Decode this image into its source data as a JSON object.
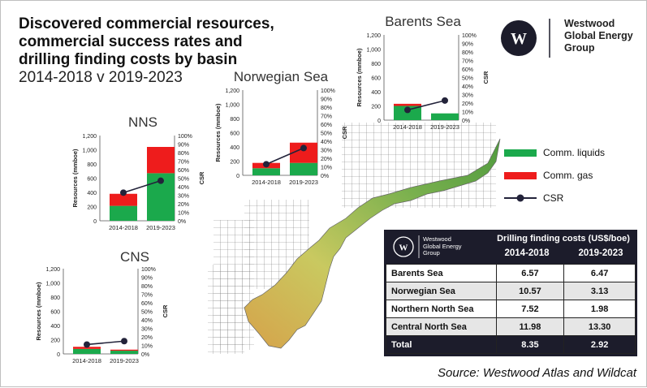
{
  "title": {
    "line1": "Discovered commercial resources,",
    "line2": "commercial success rates and",
    "line3": "drilling finding costs by basin",
    "subtitle": "2014-2018  v  2019-2023"
  },
  "logo": {
    "line1": "Westwood",
    "line2": "Global Energy",
    "line3": "Group"
  },
  "legend": {
    "liquids": "Comm. liquids",
    "gas": "Comm. gas",
    "csr": "CSR",
    "colors": {
      "liquids": "#1ba94c",
      "gas": "#ee1c1c",
      "csr": "#23233a"
    }
  },
  "chart_data": [
    {
      "type": "bar",
      "title": "NNS",
      "categories": [
        "2014-2018",
        "2019-2023"
      ],
      "series": [
        {
          "name": "Comm. liquids",
          "values": [
            210,
            670
          ]
        },
        {
          "name": "Comm. gas",
          "values": [
            170,
            370
          ]
        },
        {
          "name": "CSR",
          "values": [
            0.33,
            0.47
          ]
        }
      ],
      "ylabel": "Resources (mmboe)",
      "y2label": "CSR",
      "ylim": [
        0,
        1200
      ],
      "yticks": [
        "0",
        "200",
        "400",
        "600",
        "800",
        "1,000",
        "1,200"
      ],
      "y2ticks": [
        "0%",
        "10%",
        "20%",
        "30%",
        "40%",
        "50%",
        "60%",
        "70%",
        "80%",
        "90%",
        "100%"
      ]
    },
    {
      "type": "bar",
      "title": "Norwegian Sea",
      "categories": [
        "2014-2018",
        "2019-2023"
      ],
      "series": [
        {
          "name": "Comm. liquids",
          "values": [
            100,
            175
          ]
        },
        {
          "name": "Comm. gas",
          "values": [
            75,
            285
          ]
        },
        {
          "name": "CSR",
          "values": [
            0.13,
            0.32
          ]
        }
      ],
      "ylabel": "Resources (mmboe)",
      "y2label": "CSR",
      "ylim": [
        0,
        1200
      ],
      "yticks": [
        "0",
        "200",
        "400",
        "600",
        "800",
        "1,000",
        "1,200"
      ],
      "y2ticks": [
        "0%",
        "10%",
        "20%",
        "30%",
        "40%",
        "50%",
        "60%",
        "70%",
        "80%",
        "90%",
        "100%"
      ]
    },
    {
      "type": "bar",
      "title": "Barents Sea",
      "categories": [
        "2014-2018",
        "2019-2023"
      ],
      "series": [
        {
          "name": "Comm. liquids",
          "values": [
            200,
            95
          ]
        },
        {
          "name": "Comm. gas",
          "values": [
            30,
            0
          ]
        },
        {
          "name": "CSR",
          "values": [
            0.12,
            0.23
          ]
        }
      ],
      "ylabel": "Resources (mmboe)",
      "y2label": "CSR",
      "ylim": [
        0,
        1200
      ],
      "yticks": [
        "0",
        "200",
        "400",
        "600",
        "800",
        "1,000",
        "1,200"
      ],
      "y2ticks": [
        "0%",
        "10%",
        "20%",
        "30%",
        "40%",
        "50%",
        "60%",
        "70%",
        "80%",
        "90%",
        "100%"
      ]
    },
    {
      "type": "bar",
      "title": "CNS",
      "categories": [
        "2014-2018",
        "2019-2023"
      ],
      "series": [
        {
          "name": "Comm. liquids",
          "values": [
            70,
            45
          ]
        },
        {
          "name": "Comm. gas",
          "values": [
            30,
            15
          ]
        },
        {
          "name": "CSR",
          "values": [
            0.11,
            0.15
          ]
        }
      ],
      "ylabel": "Resources (mmboe)",
      "y2label": "CSR",
      "ylim": [
        0,
        1200
      ],
      "yticks": [
        "0",
        "200",
        "400",
        "600",
        "800",
        "1,000",
        "1,200"
      ],
      "y2ticks": [
        "0%",
        "10%",
        "20%",
        "30%",
        "40%",
        "50%",
        "60%",
        "70%",
        "80%",
        "90%",
        "100%"
      ]
    },
    {
      "type": "table",
      "header": "Drilling finding costs (US$/boe)",
      "columns": [
        "2014-2018",
        "2019-2023"
      ],
      "rows": [
        {
          "basin": "Barents Sea",
          "values": [
            "6.57",
            "6.47"
          ]
        },
        {
          "basin": "Norwegian Sea",
          "values": [
            "10.57",
            "3.13"
          ]
        },
        {
          "basin": "Northern North Sea",
          "values": [
            "7.52",
            "1.98"
          ]
        },
        {
          "basin": "Central North Sea",
          "values": [
            "11.98",
            "13.30"
          ]
        },
        {
          "basin": "Total",
          "values": [
            "8.35",
            "2.92"
          ]
        }
      ]
    }
  ],
  "table_logo": {
    "line1": "Westwood",
    "line2": "Global Energy",
    "line3": "Group"
  },
  "source": "Source: Westwood Atlas and Wildcat"
}
